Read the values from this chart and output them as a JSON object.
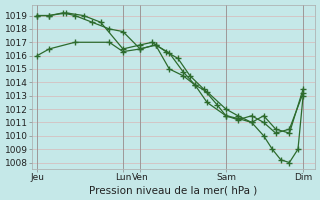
{
  "xlabel": "Pression niveau de la mer( hPa )",
  "bg_color": "#c5e8e8",
  "grid_color_major": "#e8c8c8",
  "grid_color_minor": "#ddeaea",
  "line_color": "#2d6b2d",
  "ylim": [
    1007.5,
    1019.8
  ],
  "xlim": [
    0,
    16.5
  ],
  "yticks": [
    1008,
    1009,
    1010,
    1011,
    1012,
    1013,
    1014,
    1015,
    1016,
    1017,
    1018,
    1019
  ],
  "day_positions": [
    0.3,
    5.3,
    6.3,
    11.3,
    15.8
  ],
  "day_labels": [
    "Jeu",
    "Lun",
    "Ven",
    "Sam",
    "Dim"
  ],
  "vline_positions": [
    0.3,
    5.3,
    6.3,
    11.3,
    15.8
  ],
  "series1_x": [
    0.3,
    1.0,
    2.5,
    4.5,
    5.3,
    6.3,
    7.2,
    8.0,
    8.8,
    9.5,
    10.2,
    11.3,
    12.0,
    12.8,
    13.5,
    14.2,
    15.0,
    15.8
  ],
  "series1_y": [
    1016.0,
    1016.5,
    1017.0,
    1017.0,
    1016.3,
    1016.5,
    1016.8,
    1016.2,
    1014.8,
    1013.8,
    1013.3,
    1012.0,
    1011.5,
    1011.0,
    1011.5,
    1010.5,
    1010.2,
    1013.5
  ],
  "series2_x": [
    0.3,
    1.0,
    1.8,
    2.5,
    3.5,
    4.5,
    5.3,
    6.3,
    7.2,
    8.0,
    8.8,
    9.5,
    10.2,
    11.3,
    12.0,
    12.8,
    13.5,
    14.2,
    15.0,
    15.8
  ],
  "series2_y": [
    1019.0,
    1019.0,
    1019.2,
    1019.0,
    1018.5,
    1018.0,
    1017.8,
    1016.5,
    1016.8,
    1015.0,
    1014.5,
    1013.8,
    1012.5,
    1011.5,
    1011.2,
    1011.5,
    1011.0,
    1010.2,
    1010.5,
    1013.2
  ],
  "series3_x": [
    0.3,
    1.0,
    2.0,
    3.0,
    4.0,
    5.3,
    6.3,
    7.0,
    7.8,
    8.5,
    9.2,
    10.0,
    10.8,
    11.3,
    12.0,
    12.8,
    13.5,
    14.0,
    14.5,
    15.0,
    15.5,
    15.8
  ],
  "series3_y": [
    1019.0,
    1019.0,
    1019.2,
    1019.0,
    1018.5,
    1016.5,
    1016.8,
    1017.0,
    1016.3,
    1015.8,
    1014.5,
    1013.5,
    1012.3,
    1011.5,
    1011.3,
    1011.0,
    1010.0,
    1009.0,
    1008.2,
    1008.0,
    1009.0,
    1013.0
  ],
  "marker": "+",
  "markersize": 4.0,
  "linewidth": 0.9
}
